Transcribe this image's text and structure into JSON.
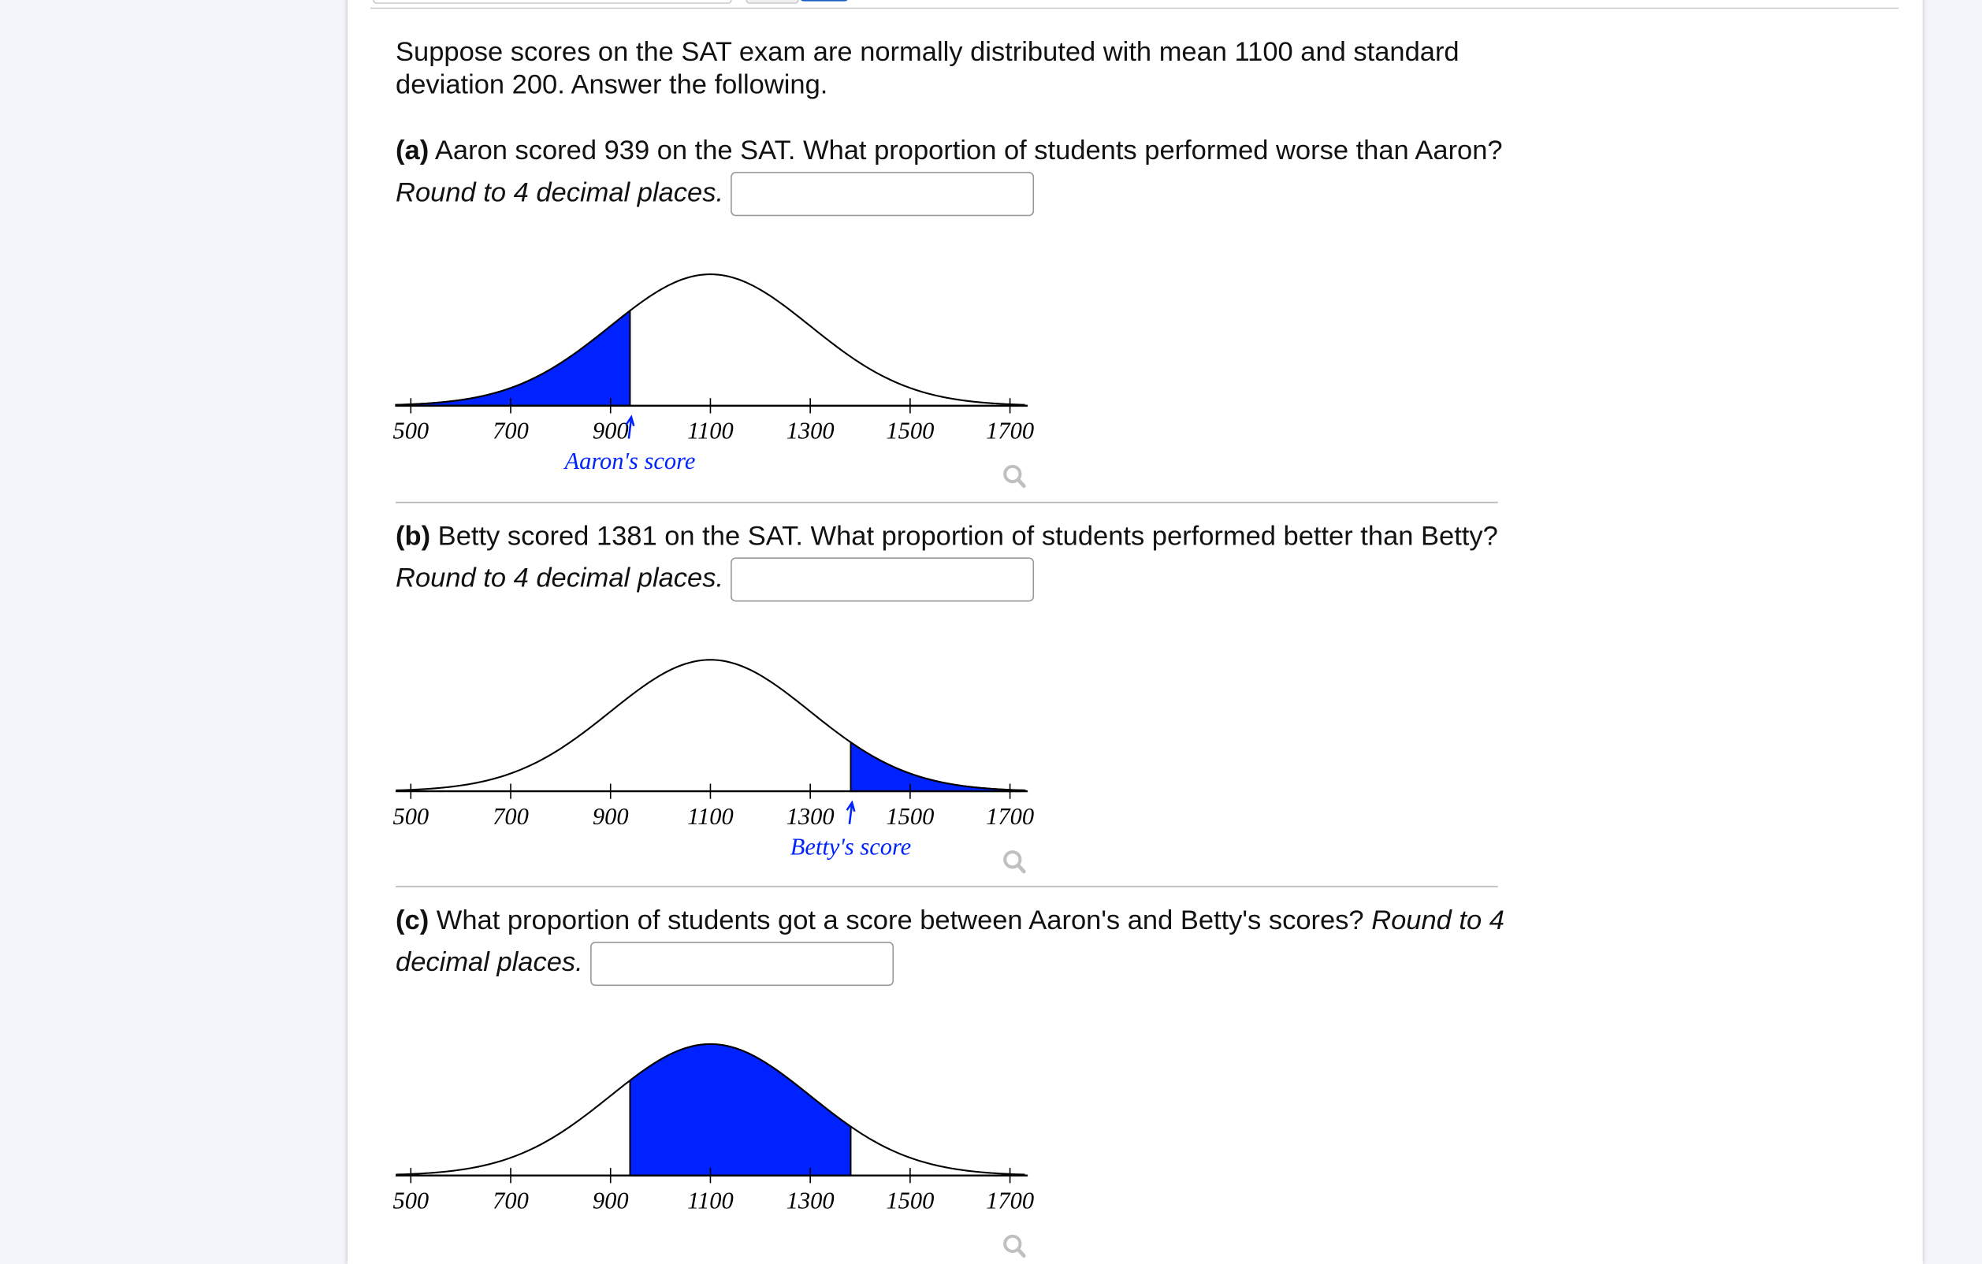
{
  "intro": "Suppose scores on the SAT exam are normally distributed with mean 1100 and standard deviation 200. Answer the following.",
  "colors": {
    "shade": "#0022ff",
    "annotation": "#0022ff",
    "curve": "#000000",
    "zoom_icon": "#c0c0c0"
  },
  "parts": [
    {
      "tag": "(a)",
      "text": "Aaron scored 939 on the SAT. What proportion of students performed worse than Aaron?",
      "hint": "Round to 4 decimal places.",
      "answer_value": ""
    },
    {
      "tag": "(b)",
      "text": "Betty scored 1381 on the SAT. What proportion of students performed better than Betty?",
      "hint": "Round to 4 decimal places.",
      "answer_value": ""
    },
    {
      "tag": "(c)",
      "text": "What proportion of students got a score between Aaron's and Betty's scores?",
      "hint": "Round to 4 decimal places.",
      "answer_value": ""
    }
  ],
  "chart_data": [
    {
      "type": "area",
      "distribution": "normal",
      "mean": 1100,
      "sd": 200,
      "xlim": [
        470,
        1730
      ],
      "ticks": [
        "500",
        "700",
        "900",
        "1100",
        "1300",
        "1500",
        "1700"
      ],
      "shade": [
        null,
        939
      ],
      "marker": 939,
      "annotation": "Aaron's score",
      "zoom_icon": "magnifier-icon"
    },
    {
      "type": "area",
      "distribution": "normal",
      "mean": 1100,
      "sd": 200,
      "xlim": [
        470,
        1730
      ],
      "ticks": [
        "500",
        "700",
        "900",
        "1100",
        "1300",
        "1500",
        "1700"
      ],
      "shade": [
        1381,
        null
      ],
      "marker": 1381,
      "annotation": "Betty's score",
      "zoom_icon": "magnifier-icon"
    },
    {
      "type": "area",
      "distribution": "normal",
      "mean": 1100,
      "sd": 200,
      "xlim": [
        470,
        1730
      ],
      "ticks": [
        "500",
        "700",
        "900",
        "1100",
        "1300",
        "1500",
        "1700"
      ],
      "shade": [
        939,
        1381
      ],
      "marker": null,
      "annotation": "",
      "zoom_icon": "magnifier-icon"
    }
  ]
}
